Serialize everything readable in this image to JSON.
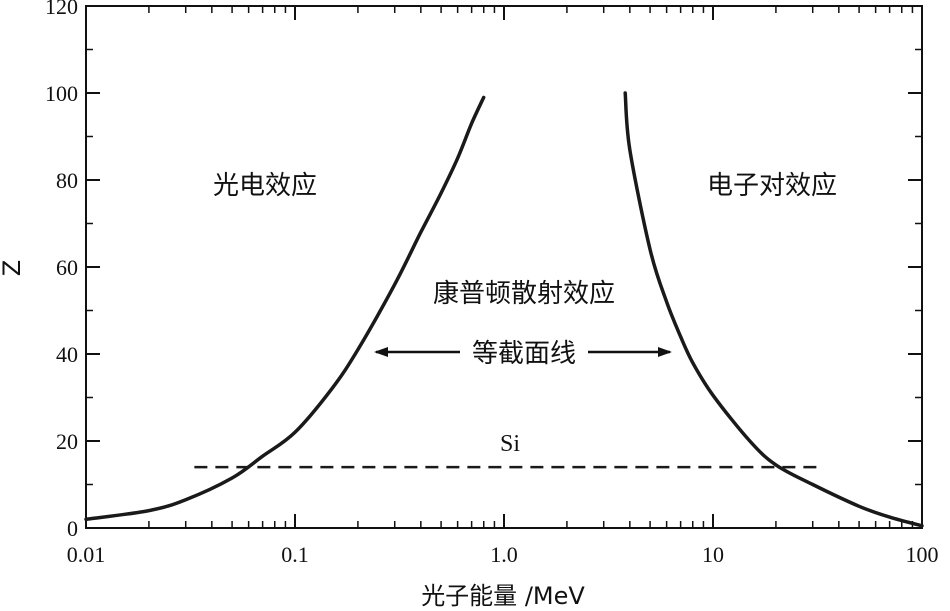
{
  "chart_data": {
    "type": "line",
    "xlabel": "光子能量 /MeV",
    "ylabel": "Z",
    "x_scale": "log",
    "xlim": [
      0.01,
      100
    ],
    "ylim": [
      0,
      120
    ],
    "x_ticks": [
      0.01,
      0.1,
      1.0,
      10,
      100
    ],
    "x_tick_labels": [
      "0.01",
      "0.1",
      "1.0",
      "10",
      "100"
    ],
    "y_ticks": [
      0,
      20,
      40,
      60,
      80,
      100,
      120
    ],
    "y_tick_labels": [
      "0",
      "20",
      "40",
      "60",
      "80",
      "100",
      "120"
    ],
    "grid": false,
    "series": [
      {
        "x": [
          0.01,
          0.02,
          0.03,
          0.05,
          0.07,
          0.1,
          0.15,
          0.2,
          0.3,
          0.4,
          0.5,
          0.6,
          0.7,
          0.8
        ],
        "y": [
          2,
          4,
          6.5,
          11.5,
          16.5,
          22,
          32,
          41,
          56,
          68,
          77,
          85,
          93,
          99
        ]
      },
      {
        "x": [
          3.8,
          4,
          5,
          6,
          7,
          8,
          10,
          15,
          20,
          30,
          50,
          70,
          100
        ],
        "y": [
          100,
          87,
          64,
          52,
          44,
          38,
          30.5,
          20,
          14.5,
          10,
          5,
          2.5,
          0.5
        ]
      }
    ],
    "reference_line": {
      "label": "Si",
      "y": 14,
      "x_range": [
        0.033,
        33
      ],
      "style": "dashed"
    },
    "annotations": {
      "photoelectric": "光电效应",
      "pair": "电子对效应",
      "compton": "康普顿散射效应",
      "equal_cross_section": "等截面线"
    }
  }
}
